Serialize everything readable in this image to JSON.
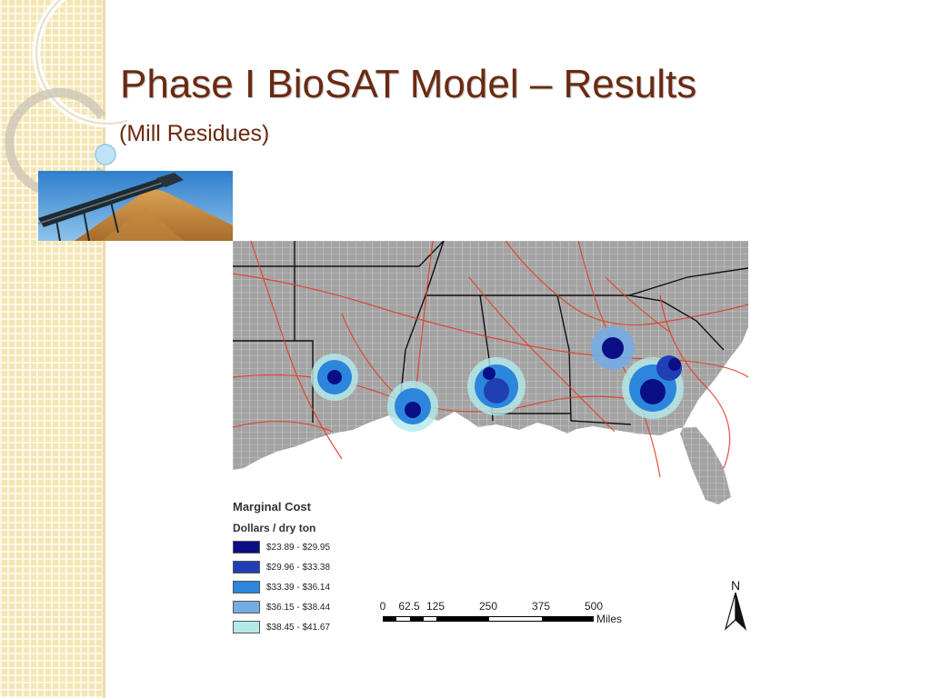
{
  "slide": {
    "title": "Phase I BioSAT Model – Results",
    "subtitle": "(Mill Residues)"
  },
  "map": {
    "legend_title": "Marginal Cost",
    "legend_units": "Dollars / dry ton",
    "legend_items": [
      {
        "label": "$23.89 - $29.95",
        "color": "#0b0f86"
      },
      {
        "label": "$29.96 - $33.38",
        "color": "#1f3fb5"
      },
      {
        "label": "$33.39 - $36.14",
        "color": "#2c86db"
      },
      {
        "label": "$36.15 - $38.44",
        "color": "#74ace4"
      },
      {
        "label": "$38.45 - $41.67",
        "color": "#b2eaea"
      }
    ],
    "scale_ticks": [
      "0",
      "62.5",
      "125",
      "250",
      "375",
      "500"
    ],
    "scale_unit": "Miles",
    "north_label": "N"
  }
}
